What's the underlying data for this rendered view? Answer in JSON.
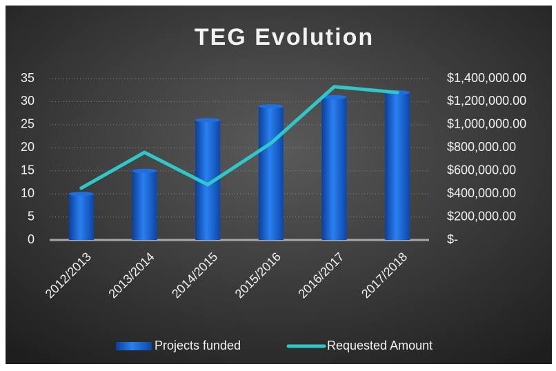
{
  "chart_data": {
    "type": "bar-line",
    "title": "TEG Evolution",
    "categories": [
      "2012/2013",
      "2013/2014",
      "2014/2015",
      "2015/2016",
      "2016/2017",
      "2017/2018"
    ],
    "series": [
      {
        "name": "Projects funded",
        "type": "bar",
        "color": "#1f6fe0",
        "values": [
          10,
          15,
          26,
          29,
          31,
          32
        ]
      },
      {
        "name": "Requested Amount",
        "type": "line",
        "axis": "y2",
        "color": "#2ec8c8",
        "values": [
          450000,
          760000,
          480000,
          840000,
          1330000,
          1280000
        ]
      }
    ],
    "ylim": [
      0,
      35
    ],
    "yticks": [
      0,
      5,
      10,
      15,
      20,
      25,
      30,
      35
    ],
    "y2lim": [
      0,
      1400000
    ],
    "y2ticks": [
      {
        "value": 0,
        "label": "$-"
      },
      {
        "value": 200000,
        "label": "$200,000.00"
      },
      {
        "value": 400000,
        "label": "$400,000.00"
      },
      {
        "value": 600000,
        "label": "$600,000.00"
      },
      {
        "value": 800000,
        "label": "$800,000.00"
      },
      {
        "value": 1000000,
        "label": "$1,000,000.00"
      },
      {
        "value": 1200000,
        "label": "$1,200,000.00"
      },
      {
        "value": 1400000,
        "label": "$1,400,000.00"
      }
    ],
    "grid": true,
    "legend": "bottom"
  }
}
